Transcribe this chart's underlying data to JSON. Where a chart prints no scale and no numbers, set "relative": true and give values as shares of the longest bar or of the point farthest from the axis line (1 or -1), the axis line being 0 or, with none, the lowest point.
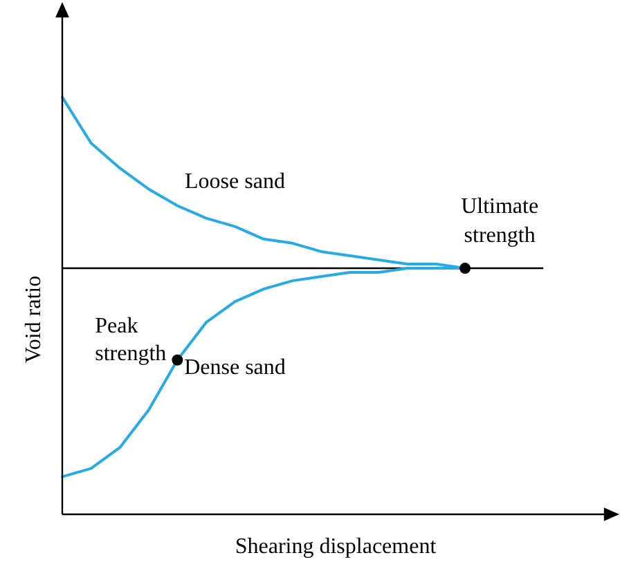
{
  "chart_data": {
    "type": "line",
    "relative": true,
    "xlabel": "Shearing displacement",
    "ylabel": "Void ratio",
    "legend": false,
    "categories": [
      null,
      null,
      null,
      null,
      null,
      null,
      null,
      null,
      null,
      null,
      null,
      null,
      null,
      null,
      null,
      null,
      null,
      null,
      null,
      null
    ],
    "series": [
      {
        "name": "Loose sand",
        "color": "#29abe2",
        "values": [
          1.0,
          0.89,
          0.83,
          0.78,
          0.74,
          0.71,
          0.69,
          0.66,
          0.65,
          0.63,
          0.62,
          0.61,
          0.6,
          0.6,
          0.59,
          null,
          null,
          null,
          null,
          null
        ]
      },
      {
        "name": "Dense sand",
        "color": "#29abe2",
        "values": [
          0.09,
          0.11,
          0.16,
          0.25,
          0.37,
          0.46,
          0.51,
          0.54,
          0.56,
          0.57,
          0.58,
          0.58,
          0.59,
          0.59,
          0.59,
          null,
          null,
          null,
          null,
          null
        ]
      }
    ],
    "ref_lines": [
      {
        "axis": "y",
        "value": 0.59,
        "color": "#000000"
      }
    ],
    "annotations": [
      "Peak strength",
      {
        "text": "Ultimate strength",
        "y": 0.59
      }
    ]
  }
}
